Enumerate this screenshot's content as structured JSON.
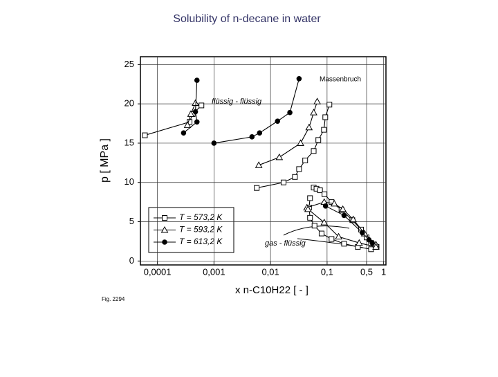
{
  "title": "Solubility of n-decane in water",
  "chart_data": {
    "type": "line",
    "x_label": "x n-C10H22 [ - ]",
    "y_label": "p [ MPa ]",
    "annotations": [
      "Massenbruch",
      "flüssig - flüssig",
      "gas - flüssig",
      "Fig. 2294"
    ],
    "x_log": true,
    "grid": true,
    "legend": "lower left",
    "xlim": [
      5e-05,
      1.1
    ],
    "ylim": [
      -0.5,
      26
    ],
    "xticks": [
      {
        "value": 0.0001,
        "label": "0,0001"
      },
      {
        "value": 0.001,
        "label": "0,001"
      },
      {
        "value": 0.01,
        "label": "0,01"
      },
      {
        "value": 0.1,
        "label": "0,1"
      },
      {
        "value": 0.5,
        "label": "0,5"
      },
      1
    ],
    "yticks": [
      0,
      5,
      10,
      15,
      20,
      25
    ],
    "series": [
      {
        "name": "T = 573,2 K",
        "color": "#000000",
        "marker": "square",
        "x": [
          6e-05,
          0.00037,
          0.00042,
          0.0006,
          null,
          0.0057,
          0.017,
          0.027,
          0.032,
          0.041,
          0.058,
          0.07,
          0.088,
          0.093,
          0.11,
          null,
          0.058,
          0.065,
          0.075,
          0.09,
          0.12,
          0.18,
          0.28,
          0.4,
          0.5,
          0.6,
          0.75,
          null,
          0.05,
          0.048,
          0.05,
          0.06,
          0.08,
          0.12,
          0.2,
          0.35,
          0.6
        ],
        "values": [
          16.0,
          17.7,
          18.7,
          19.8,
          null,
          9.3,
          10.0,
          10.7,
          11.7,
          12.8,
          14.0,
          15.4,
          16.7,
          18.3,
          19.9,
          null,
          9.35,
          9.2,
          9.0,
          8.5,
          7.5,
          6.5,
          5.2,
          4.0,
          3.0,
          2.3,
          1.8,
          null,
          8.0,
          6.8,
          5.5,
          4.5,
          3.5,
          2.8,
          2.2,
          1.8,
          1.5
        ]
      },
      {
        "name": "T = 593,2 K",
        "color": "#000000",
        "marker": "triangle",
        "x": [
          0.00034,
          0.00039,
          0.00047,
          null,
          0.0062,
          0.0143,
          0.034,
          0.048,
          0.058,
          0.067,
          null,
          0.044,
          0.089,
          0.134,
          0.19,
          0.29,
          0.46,
          0.73,
          null,
          0.046,
          0.089,
          0.16,
          0.37,
          0.73
        ],
        "values": [
          17.3,
          18.7,
          20.1,
          null,
          12.2,
          13.2,
          15.0,
          17.0,
          18.9,
          20.3,
          null,
          6.8,
          7.5,
          7.3,
          6.6,
          5.3,
          3.5,
          2.1,
          null,
          6.6,
          4.9,
          3.1,
          2.3,
          1.8
        ]
      },
      {
        "name": "T = 613,2 K",
        "color": "#000000",
        "marker": "circle",
        "x": [
          0.00029,
          0.0005,
          0.00047,
          0.0005,
          null,
          0.001,
          0.0047,
          0.0064,
          0.0133,
          0.022,
          0.032,
          null,
          0.094,
          0.2,
          0.42,
          0.55,
          0.63
        ],
        "values": [
          16.3,
          17.7,
          19.0,
          23.0,
          null,
          15.0,
          15.8,
          16.3,
          17.8,
          18.9,
          23.2,
          null,
          7.0,
          5.8,
          3.6,
          2.7,
          2.3
        ]
      }
    ]
  }
}
